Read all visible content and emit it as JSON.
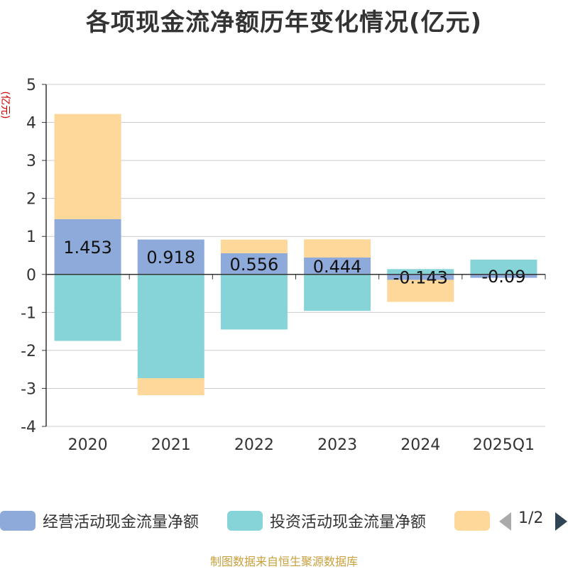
{
  "title": "各项现金流净额历年变化情况(亿元)",
  "unit_label": "(亿元)",
  "source": "制图数据来自恒生聚源数据库",
  "legend": {
    "items": [
      {
        "label": "经营活动现金流量净额",
        "color": "#8eaadb"
      },
      {
        "label": "投资活动现金流量净额",
        "color": "#86d4d8"
      },
      {
        "label": "",
        "color": "#fdd89a"
      }
    ],
    "page": "1/2"
  },
  "chart_data": {
    "type": "bar",
    "stacked": true,
    "categories": [
      "2020",
      "2021",
      "2022",
      "2023",
      "2024",
      "2025Q1"
    ],
    "series": [
      {
        "name": "经营活动现金流量净额",
        "color": "#8eaadb",
        "values": [
          1.453,
          0.918,
          0.556,
          0.444,
          -0.143,
          -0.09
        ]
      },
      {
        "name": "投资活动现金流量净额",
        "color": "#86d4d8",
        "values": [
          -1.75,
          -2.73,
          -1.45,
          -0.96,
          0.14,
          0.39
        ]
      },
      {
        "color": "#fdd89a",
        "values": [
          2.77,
          -0.45,
          0.36,
          0.48,
          -0.58,
          0.0
        ]
      }
    ],
    "data_labels": [
      "1.453",
      "0.918",
      "0.556",
      "0.444",
      "-0.143",
      "-0.09"
    ],
    "y_ticks": [
      "5",
      "4",
      "3",
      "2",
      "1",
      "0",
      "-1",
      "-2",
      "-3",
      "-4"
    ],
    "ylim": [
      -4,
      5
    ],
    "grid": true
  }
}
